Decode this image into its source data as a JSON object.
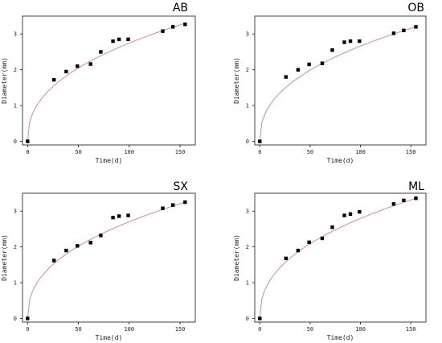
{
  "chart_data": [
    {
      "type": "scatter",
      "title": "AB",
      "xlabel": "Time(d)",
      "ylabel": "Diameter(mm)",
      "xticks": [
        "0",
        "50",
        "100",
        "150"
      ],
      "yticks": [
        "0",
        "1",
        "2",
        "3"
      ],
      "xlim": [
        -5,
        165
      ],
      "ylim": [
        -0.1,
        3.5
      ],
      "grid": false,
      "series": [
        {
          "x": [
            0,
            26,
            38,
            49,
            62,
            72,
            84,
            90,
            99,
            133,
            143,
            155
          ],
          "y": [
            0.0,
            1.72,
            1.95,
            2.1,
            2.16,
            2.5,
            2.8,
            2.85,
            2.85,
            3.08,
            3.2,
            3.27
          ]
        }
      ],
      "fit": {
        "color": "#d88a95",
        "x_range": [
          0,
          155
        ],
        "y_range": [
          0,
          3.3
        ]
      }
    },
    {
      "type": "scatter",
      "title": "OB",
      "xlabel": "Time(d)",
      "ylabel": "Diameter(mm)",
      "xticks": [
        "0",
        "50",
        "100",
        "150"
      ],
      "yticks": [
        "0",
        "1",
        "2",
        "3"
      ],
      "xlim": [
        -5,
        165
      ],
      "ylim": [
        -0.1,
        3.5
      ],
      "grid": false,
      "series": [
        {
          "x": [
            0,
            26,
            38,
            49,
            62,
            72,
            84,
            90,
            99,
            133,
            143,
            155
          ],
          "y": [
            0.0,
            1.8,
            2.0,
            2.15,
            2.18,
            2.55,
            2.77,
            2.8,
            2.8,
            3.02,
            3.1,
            3.2
          ]
        }
      ],
      "fit": {
        "color": "#d88a95",
        "x_range": [
          0,
          155
        ],
        "y_range": [
          0,
          3.2
        ]
      }
    },
    {
      "type": "scatter",
      "title": "SX",
      "xlabel": "Time(d)",
      "ylabel": "Diameter(mm)",
      "xticks": [
        "0",
        "50",
        "100",
        "150"
      ],
      "yticks": [
        "0",
        "1",
        "2",
        "3"
      ],
      "xlim": [
        -5,
        165
      ],
      "ylim": [
        -0.1,
        3.5
      ],
      "grid": false,
      "series": [
        {
          "x": [
            0,
            26,
            38,
            49,
            62,
            72,
            84,
            90,
            99,
            133,
            143,
            155
          ],
          "y": [
            0.0,
            1.62,
            1.9,
            2.03,
            2.12,
            2.32,
            2.82,
            2.86,
            2.88,
            3.08,
            3.17,
            3.25
          ]
        }
      ],
      "fit": {
        "color": "#d88a95",
        "x_range": [
          0,
          155
        ],
        "y_range": [
          0,
          3.25
        ]
      }
    },
    {
      "type": "scatter",
      "title": "ML",
      "xlabel": "Time(d)",
      "ylabel": "Diameter(mm)",
      "xticks": [
        "0",
        "50",
        "100",
        "150"
      ],
      "yticks": [
        "0",
        "1",
        "2",
        "3"
      ],
      "xlim": [
        -5,
        165
      ],
      "ylim": [
        -0.1,
        3.5
      ],
      "grid": false,
      "series": [
        {
          "x": [
            0,
            26,
            38,
            49,
            62,
            72,
            84,
            90,
            99,
            133,
            143,
            155
          ],
          "y": [
            0.0,
            1.68,
            1.9,
            2.13,
            2.24,
            2.55,
            2.88,
            2.92,
            2.98,
            3.2,
            3.3,
            3.36
          ]
        }
      ],
      "fit": {
        "color": "#d88a95",
        "x_range": [
          0,
          155
        ],
        "y_range": [
          0,
          3.36
        ]
      }
    }
  ]
}
